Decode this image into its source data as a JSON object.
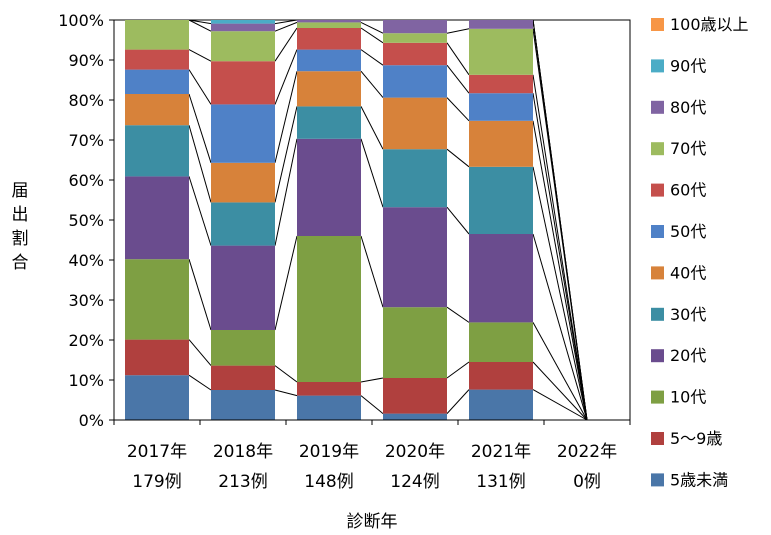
{
  "chart_data": {
    "type": "bar",
    "stacked": true,
    "percent": true,
    "series_lines": true,
    "categories": [
      "2017年",
      "2018年",
      "2019年",
      "2020年",
      "2021年",
      "2022年"
    ],
    "category_counts": [
      "179例",
      "213例",
      "148例",
      "124例",
      "131例",
      "0例"
    ],
    "xlabel": "診断年",
    "ylabel": "届出割合",
    "ylim": [
      0,
      100
    ],
    "y_ticks": [
      "0%",
      "10%",
      "20%",
      "30%",
      "40%",
      "50%",
      "60%",
      "70%",
      "80%",
      "90%",
      "100%"
    ],
    "legend_position": "right",
    "grid": false,
    "series": [
      {
        "name": "5歳未満",
        "color": "#4A76A8",
        "values": [
          11.2,
          7.5,
          6.1,
          1.6,
          7.6,
          0
        ]
      },
      {
        "name": "5～9歳",
        "color": "#B0403E",
        "values": [
          8.9,
          6.1,
          3.4,
          8.9,
          6.9,
          0
        ]
      },
      {
        "name": "10代",
        "color": "#7E9F43",
        "values": [
          20.1,
          8.9,
          36.5,
          17.7,
          9.9,
          0
        ]
      },
      {
        "name": "20代",
        "color": "#6A4C8E",
        "values": [
          20.7,
          21.1,
          24.3,
          25.0,
          22.1,
          0
        ]
      },
      {
        "name": "30代",
        "color": "#3C8EA3",
        "values": [
          12.8,
          10.8,
          8.1,
          14.5,
          16.8,
          0
        ]
      },
      {
        "name": "40代",
        "color": "#D7823A",
        "values": [
          7.8,
          9.9,
          8.8,
          12.9,
          11.5,
          0
        ]
      },
      {
        "name": "50代",
        "color": "#4F81C7",
        "values": [
          6.1,
          14.6,
          5.4,
          8.1,
          6.9,
          0
        ]
      },
      {
        "name": "60代",
        "color": "#C54F4C",
        "values": [
          5.0,
          10.8,
          5.4,
          5.6,
          4.6,
          0
        ]
      },
      {
        "name": "70代",
        "color": "#9DBB5F",
        "values": [
          7.4,
          7.5,
          1.4,
          2.4,
          11.5,
          0
        ]
      },
      {
        "name": "80代",
        "color": "#8064A2",
        "values": [
          0,
          1.9,
          0.6,
          3.3,
          2.2,
          0
        ]
      },
      {
        "name": "90代",
        "color": "#4BACC6",
        "values": [
          0,
          0.9,
          0,
          0,
          0,
          0
        ]
      },
      {
        "name": "100歳以上",
        "color": "#F79646",
        "values": [
          0,
          0,
          0,
          0,
          0,
          0
        ]
      }
    ]
  }
}
